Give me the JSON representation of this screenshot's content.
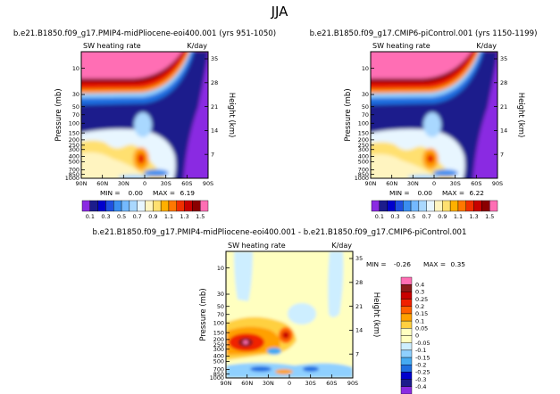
{
  "figure_title": "JJA",
  "chart_data": [
    {
      "type": "heatmap",
      "title": "b.e21.B1850.f09_g17.PMIP4-midPliocene-eoi400.001 (yrs 951-1050)",
      "left_label": "SW heating rate",
      "right_label": "K/day",
      "xlabel": "",
      "ylabel": "Pressure (mb)",
      "y2label": "Height (km)",
      "x_ticks": [
        "90N",
        "60N",
        "30N",
        "0",
        "30S",
        "60S",
        "90S"
      ],
      "y_ticks": [
        "10",
        "30",
        "50",
        "70",
        "100",
        "150",
        "200",
        "250",
        "300",
        "400",
        "500",
        "700",
        "850",
        "1000"
      ],
      "y2_ticks": [
        "35",
        "28",
        "21",
        "14",
        "7"
      ],
      "min_label": "MIN =",
      "min_value": "0.00",
      "max_label": "MAX =",
      "max_value": "6.19",
      "colorbar_levels": [
        "0.1",
        "0.3",
        "0.5",
        "0.7",
        "0.9",
        "1.1",
        "1.3",
        "1.5"
      ],
      "colorbar_colors": [
        "#8a2be2",
        "#1c1c8c",
        "#0000cd",
        "#1f4fe0",
        "#3a8ef0",
        "#74b9ff",
        "#a9d8ff",
        "#e8f6ff",
        "#fff4c0",
        "#ffe070",
        "#ffb000",
        "#ff7800",
        "#f03000",
        "#c80000",
        "#8b0000",
        "#ff6eb4"
      ]
    },
    {
      "type": "heatmap",
      "title": "b.e21.B1850.f09_g17.CMIP6-piControl.001 (yrs 1150-1199)",
      "left_label": "SW heating rate",
      "right_label": "K/day",
      "xlabel": "",
      "ylabel": "Pressure (mb)",
      "y2label": "Height (km)",
      "x_ticks": [
        "90N",
        "60N",
        "30N",
        "0",
        "30S",
        "60S",
        "90S"
      ],
      "y_ticks": [
        "10",
        "30",
        "50",
        "70",
        "100",
        "150",
        "200",
        "250",
        "300",
        "400",
        "500",
        "700",
        "850",
        "1000"
      ],
      "y2_ticks": [
        "35",
        "28",
        "21",
        "14",
        "7"
      ],
      "min_label": "MIN =",
      "min_value": "0.00",
      "max_label": "MAX =",
      "max_value": "6.22",
      "colorbar_levels": [
        "0.1",
        "0.3",
        "0.5",
        "0.7",
        "0.9",
        "1.1",
        "1.3",
        "1.5"
      ],
      "colorbar_colors": [
        "#8a2be2",
        "#1c1c8c",
        "#0000cd",
        "#1f4fe0",
        "#3a8ef0",
        "#74b9ff",
        "#a9d8ff",
        "#e8f6ff",
        "#fff4c0",
        "#ffe070",
        "#ffb000",
        "#ff7800",
        "#f03000",
        "#c80000",
        "#8b0000",
        "#ff6eb4"
      ]
    },
    {
      "type": "heatmap",
      "title": "b.e21.B1850.f09_g17.PMIP4-midPliocene-eoi400.001 - b.e21.B1850.f09_g17.CMIP6-piControl.001",
      "left_label": "SW heating rate",
      "right_label": "K/day",
      "xlabel": "",
      "ylabel": "Pressure (mb)",
      "y2label": "Height (km)",
      "x_ticks": [
        "90N",
        "60N",
        "30N",
        "0",
        "30S",
        "60S",
        "90S"
      ],
      "y_ticks": [
        "10",
        "30",
        "50",
        "70",
        "100",
        "150",
        "200",
        "250",
        "300",
        "400",
        "500",
        "700",
        "850",
        "1000"
      ],
      "y2_ticks": [
        "35",
        "28",
        "21",
        "14",
        "7"
      ],
      "min_label": "MIN =",
      "min_value": "-0.26",
      "max_label": "MAX =",
      "max_value": "0.35",
      "colorbar_levels": [
        "0.4",
        "0.3",
        "0.25",
        "0.2",
        "0.15",
        "0.1",
        "0.05",
        "0",
        "-0.05",
        "-0.1",
        "-0.15",
        "-0.2",
        "-0.25",
        "-0.3",
        "-0.4"
      ],
      "colorbar_colors": [
        "#ff6eb4",
        "#8b1a1a",
        "#c80000",
        "#f02000",
        "#ff6000",
        "#ffa000",
        "#ffd040",
        "#ffffc0",
        "#ffffc0",
        "#cdeeff",
        "#8fd0ff",
        "#45aaf2",
        "#1e6ee0",
        "#0000cd",
        "#1c1c8c",
        "#8a2be2"
      ]
    }
  ]
}
